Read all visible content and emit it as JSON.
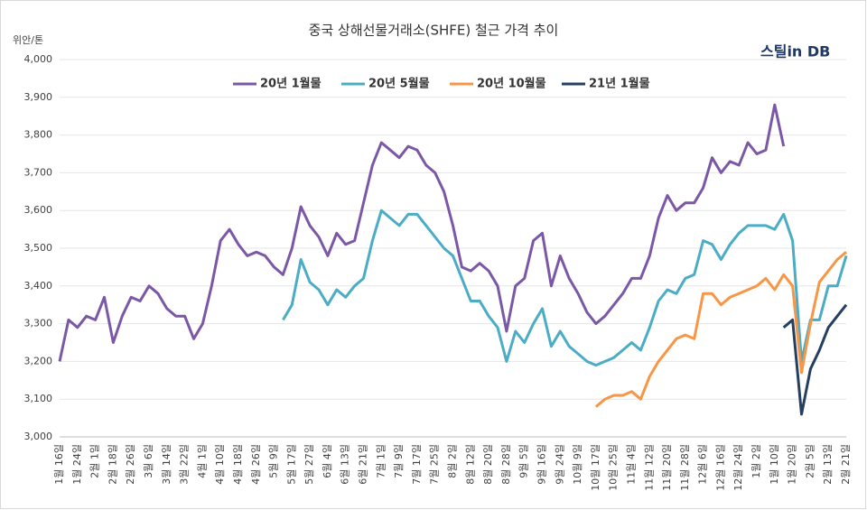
{
  "chart_data": {
    "type": "line",
    "title": "중국 상해선물거래소(SHFE) 철근 가격 추이",
    "y_label": "위안/톤",
    "logo": "스틸in DB",
    "categories": [
      "1월 16일",
      null,
      "1월 24일",
      null,
      "2월 1일",
      null,
      "2월 18일",
      null,
      "2월 26일",
      null,
      "3월 6일",
      null,
      "3월 14일",
      null,
      "3월 22일",
      null,
      "4월 1일",
      null,
      "4월 10일",
      null,
      "4월 18일",
      null,
      "4월 26일",
      null,
      "5월 9일",
      null,
      "5월 17일",
      null,
      "5월 27일",
      null,
      "6월 4일",
      null,
      "6월 13일",
      null,
      "6월 21일",
      null,
      "7월 1일",
      null,
      "7월 9일",
      null,
      "7월 17일",
      null,
      "7월 25일",
      null,
      "8월 2일",
      null,
      "8월 12일",
      null,
      "8월 20일",
      null,
      "8월 28일",
      null,
      "9월 5일",
      null,
      "9월 16일",
      null,
      "9월 24일",
      null,
      "10월 9일",
      null,
      "10월 17일",
      null,
      "10월 25일",
      null,
      "11월 4일",
      null,
      "11월 12일",
      null,
      "11월 20일",
      null,
      "11월 28일",
      null,
      "12월 6일",
      null,
      "12월 16일",
      null,
      "12월 24일",
      null,
      "1월 2일",
      null,
      "1월 10일",
      null,
      "1월 20일",
      null,
      "2월 5일",
      null,
      "2월 13일",
      null,
      "2월 21일"
    ],
    "series": [
      {
        "name": "20년 1월물",
        "color": "#7b58a6",
        "values": [
          3200,
          3310,
          3290,
          3320,
          3310,
          3370,
          3250,
          3320,
          3370,
          3360,
          3400,
          3380,
          3340,
          3320,
          3320,
          3260,
          3300,
          3400,
          3520,
          3550,
          3510,
          3480,
          3490,
          3480,
          3450,
          3430,
          3500,
          3610,
          3560,
          3530,
          3480,
          3540,
          3510,
          3520,
          3620,
          3720,
          3780,
          3760,
          3740,
          3770,
          3760,
          3720,
          3700,
          3650,
          3560,
          3450,
          3440,
          3460,
          3440,
          3400,
          3280,
          3400,
          3420,
          3520,
          3540,
          3400,
          3480,
          3420,
          3380,
          3330,
          3300,
          3320,
          3350,
          3380,
          3420,
          3420,
          3480,
          3580,
          3640,
          3600,
          3620,
          3620,
          3660,
          3740,
          3700,
          3730,
          3720,
          3780,
          3750,
          3760,
          3880,
          3770,
          null,
          null,
          null,
          null,
          null,
          null,
          null
        ]
      },
      {
        "name": "20년 5월물",
        "color": "#4bacc6",
        "values": [
          null,
          null,
          null,
          null,
          null,
          null,
          null,
          null,
          null,
          null,
          null,
          null,
          null,
          null,
          null,
          null,
          null,
          null,
          null,
          null,
          null,
          null,
          null,
          null,
          null,
          3310,
          3350,
          3470,
          3410,
          3390,
          3350,
          3390,
          3370,
          3400,
          3420,
          3520,
          3600,
          3580,
          3560,
          3590,
          3590,
          3560,
          3530,
          3500,
          3480,
          3420,
          3360,
          3360,
          3320,
          3290,
          3200,
          3280,
          3250,
          3300,
          3340,
          3240,
          3280,
          3240,
          3220,
          3200,
          3190,
          3200,
          3210,
          3230,
          3250,
          3230,
          3290,
          3360,
          3390,
          3380,
          3420,
          3430,
          3520,
          3510,
          3470,
          3510,
          3540,
          3560,
          3560,
          3560,
          3550,
          3590,
          3520,
          3200,
          3310,
          3310,
          3400,
          3400,
          3480
        ]
      },
      {
        "name": "20년 10월물",
        "color": "#f79646",
        "values": [
          null,
          null,
          null,
          null,
          null,
          null,
          null,
          null,
          null,
          null,
          null,
          null,
          null,
          null,
          null,
          null,
          null,
          null,
          null,
          null,
          null,
          null,
          null,
          null,
          null,
          null,
          null,
          null,
          null,
          null,
          null,
          null,
          null,
          null,
          null,
          null,
          null,
          null,
          null,
          null,
          null,
          null,
          null,
          null,
          null,
          null,
          null,
          null,
          null,
          null,
          null,
          null,
          null,
          null,
          null,
          null,
          null,
          null,
          null,
          null,
          3080,
          3100,
          3110,
          3110,
          3120,
          3100,
          3160,
          3200,
          3230,
          3260,
          3270,
          3260,
          3380,
          3380,
          3350,
          3370,
          3380,
          3390,
          3400,
          3420,
          3390,
          3430,
          3400,
          3170,
          3300,
          3410,
          3440,
          3470,
          3490
        ]
      },
      {
        "name": "21년 1월물",
        "color": "#243f60",
        "values": [
          null,
          null,
          null,
          null,
          null,
          null,
          null,
          null,
          null,
          null,
          null,
          null,
          null,
          null,
          null,
          null,
          null,
          null,
          null,
          null,
          null,
          null,
          null,
          null,
          null,
          null,
          null,
          null,
          null,
          null,
          null,
          null,
          null,
          null,
          null,
          null,
          null,
          null,
          null,
          null,
          null,
          null,
          null,
          null,
          null,
          null,
          null,
          null,
          null,
          null,
          null,
          null,
          null,
          null,
          null,
          null,
          null,
          null,
          null,
          null,
          null,
          null,
          null,
          null,
          null,
          null,
          null,
          null,
          null,
          null,
          null,
          null,
          null,
          null,
          null,
          null,
          null,
          null,
          null,
          null,
          null,
          3290,
          3310,
          3060,
          3180,
          3230,
          3290,
          3320,
          3350
        ]
      }
    ],
    "ylim": [
      3000,
      4000
    ],
    "yticks": [
      {
        "value": 3000,
        "label": "3,000"
      },
      {
        "value": 3100,
        "label": "3,100"
      },
      {
        "value": 3200,
        "label": "3,200"
      },
      {
        "value": 3300,
        "label": "3,300"
      },
      {
        "value": 3400,
        "label": "3,400"
      },
      {
        "value": 3500,
        "label": "3,500"
      },
      {
        "value": 3600,
        "label": "3,600"
      },
      {
        "value": 3700,
        "label": "3,700"
      },
      {
        "value": 3800,
        "label": "3,800"
      },
      {
        "value": 3900,
        "label": "3,900"
      },
      {
        "value": 4000,
        "label": "4,000"
      }
    ],
    "grid": true,
    "legend": "top"
  }
}
